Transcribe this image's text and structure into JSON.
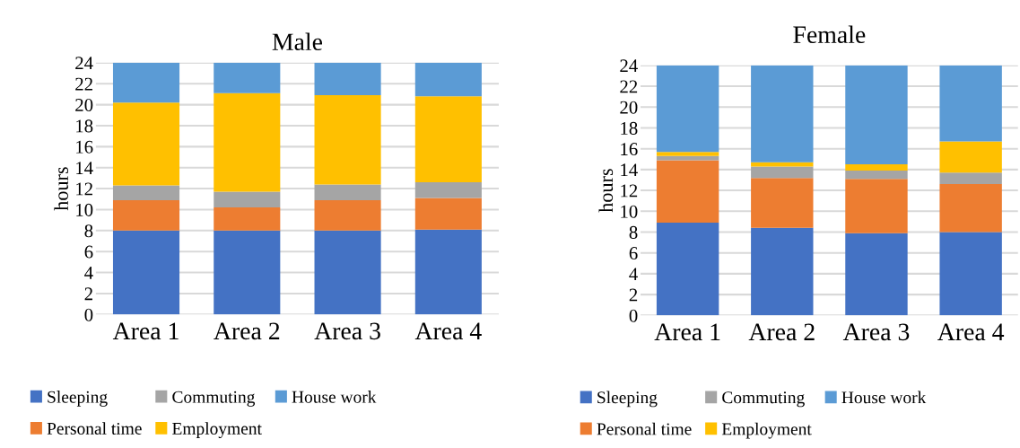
{
  "chart_data": [
    {
      "type": "bar",
      "title": "Male",
      "ylabel": "hours",
      "stacked": true,
      "categories": [
        "Area 1",
        "Area 2",
        "Area 3",
        "Area 4"
      ],
      "ylim": [
        0,
        24
      ],
      "yticks": [
        0,
        2,
        4,
        6,
        8,
        10,
        12,
        14,
        16,
        18,
        20,
        22,
        24
      ],
      "grid": "y",
      "legend": "bottom",
      "series": [
        {
          "name": "Sleeping",
          "color": "#4472c4",
          "values": [
            8.0,
            8.0,
            8.0,
            8.1
          ]
        },
        {
          "name": "Personal time",
          "color": "#ed7d31",
          "values": [
            2.9,
            2.2,
            2.9,
            3.0
          ]
        },
        {
          "name": "Commuting",
          "color": "#a5a5a5",
          "values": [
            1.4,
            1.5,
            1.5,
            1.5
          ]
        },
        {
          "name": "Employment",
          "color": "#ffc000",
          "values": [
            7.9,
            9.4,
            8.5,
            8.2
          ]
        },
        {
          "name": "House work",
          "color": "#5b9bd5",
          "values": [
            3.8,
            2.9,
            3.1,
            3.2
          ]
        }
      ]
    },
    {
      "type": "bar",
      "title": "Female",
      "ylabel": "hours",
      "stacked": true,
      "categories": [
        "Area 1",
        "Area 2",
        "Area 3",
        "Area 4"
      ],
      "ylim": [
        0,
        24
      ],
      "yticks": [
        0,
        2,
        4,
        6,
        8,
        10,
        12,
        14,
        16,
        18,
        20,
        22,
        24
      ],
      "grid": "y",
      "legend": "bottom",
      "series": [
        {
          "name": "Sleeping",
          "color": "#4472c4",
          "values": [
            8.9,
            8.4,
            7.9,
            8.0
          ]
        },
        {
          "name": "Personal time",
          "color": "#ed7d31",
          "values": [
            6.0,
            4.8,
            5.2,
            4.6
          ]
        },
        {
          "name": "Commuting",
          "color": "#a5a5a5",
          "values": [
            0.4,
            1.1,
            0.8,
            1.1
          ]
        },
        {
          "name": "Employment",
          "color": "#ffc000",
          "values": [
            0.4,
            0.4,
            0.6,
            3.0
          ]
        },
        {
          "name": "House work",
          "color": "#5b9bd5",
          "values": [
            8.3,
            9.3,
            9.5,
            7.3
          ]
        }
      ]
    }
  ]
}
